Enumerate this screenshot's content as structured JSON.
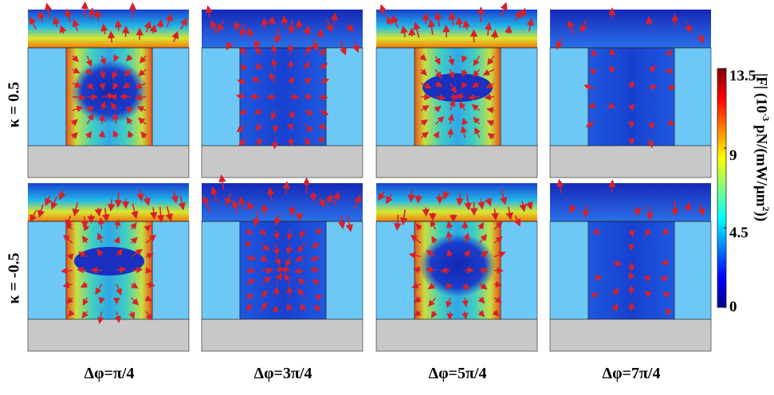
{
  "row_labels": [
    "κ = 0.5",
    "κ = -0.5"
  ],
  "column_labels": [
    "Δφ=π/4",
    "Δφ=3π/4",
    "Δφ=5π/4",
    "Δφ=7π/4"
  ],
  "colorbar": {
    "ticks": [
      "13.5",
      "9",
      "4.5",
      "0"
    ],
    "tick_values": [
      13.5,
      9,
      4.5,
      0
    ],
    "min": 0,
    "max": 13.5,
    "title_pre": "|F| (10",
    "title_exp1": "-3",
    "title_mid": " pN/(mW/μm",
    "title_exp2": "2",
    "title_post": "))",
    "colormap": [
      "#00008f",
      "#0000ff",
      "#0080ff",
      "#00ffff",
      "#80ff80",
      "#ffff00",
      "#ff8000",
      "#ff0000",
      "#800000"
    ]
  },
  "colors": {
    "substrate": "#c8c8c8",
    "wall": "#6ec8f5",
    "field_low": "#1538c8",
    "arrow": "#d8202a",
    "outline": "#222222"
  },
  "panels": [
    {
      "row": 0,
      "col": 0,
      "top_field": "hot",
      "slot_field": "hot",
      "slot_blob": "center",
      "arrows": "dense"
    },
    {
      "row": 0,
      "col": 1,
      "top_field": "cool",
      "slot_field": "cool",
      "slot_blob": "none",
      "arrows": "dense"
    },
    {
      "row": 0,
      "col": 2,
      "top_field": "hot",
      "slot_field": "hot",
      "slot_blob": "oval",
      "arrows": "dense"
    },
    {
      "row": 0,
      "col": 3,
      "top_field": "cool",
      "slot_field": "cool",
      "slot_blob": "none",
      "arrows": "sparse"
    },
    {
      "row": 1,
      "col": 0,
      "top_field": "hot",
      "slot_field": "hot",
      "slot_blob": "oval",
      "arrows": "dense"
    },
    {
      "row": 1,
      "col": 1,
      "top_field": "cool",
      "slot_field": "cool",
      "slot_blob": "none",
      "arrows": "dense"
    },
    {
      "row": 1,
      "col": 2,
      "top_field": "hot",
      "slot_field": "hot",
      "slot_blob": "center",
      "arrows": "dense"
    },
    {
      "row": 1,
      "col": 3,
      "top_field": "cool",
      "slot_field": "cool",
      "slot_blob": "none",
      "arrows": "sparse"
    }
  ]
}
